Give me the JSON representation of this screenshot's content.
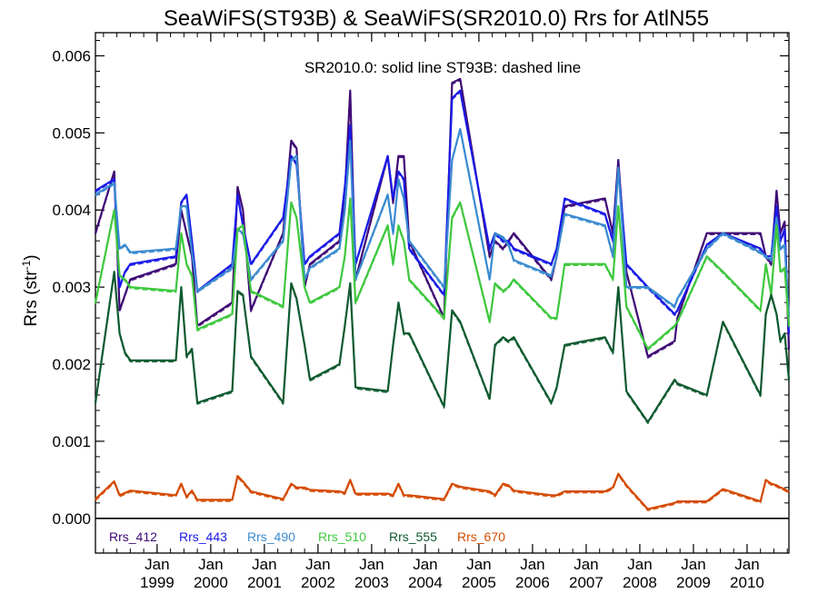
{
  "chart_data": {
    "type": "line",
    "title": "SeaWiFS(ST93B) & SeaWiFS(SR2010.0)  Rrs for AtlN55",
    "annotation": "SR2010.0: solid line   ST93B: dashed line",
    "ylabel": {
      "base": "Rrs (str",
      "sup": "-1",
      "close": ")"
    },
    "ylim": [
      -0.00045,
      0.0063
    ],
    "yticks": [
      "0.000",
      "0.001",
      "0.002",
      "0.003",
      "0.004",
      "0.005",
      "0.006"
    ],
    "xlim": [
      1997.85,
      2010.78
    ],
    "xticks": [
      {
        "x": 1999.0,
        "month": "Jan",
        "year": "1999"
      },
      {
        "x": 2000.0,
        "month": "Jan",
        "year": "2000"
      },
      {
        "x": 2001.0,
        "month": "Jan",
        "year": "2001"
      },
      {
        "x": 2002.0,
        "month": "Jan",
        "year": "2002"
      },
      {
        "x": 2003.0,
        "month": "Jan",
        "year": "2003"
      },
      {
        "x": 2004.0,
        "month": "Jan",
        "year": "2004"
      },
      {
        "x": 2005.0,
        "month": "Jan",
        "year": "2005"
      },
      {
        "x": 2006.0,
        "month": "Jan",
        "year": "2006"
      },
      {
        "x": 2007.0,
        "month": "Jan",
        "year": "2007"
      },
      {
        "x": 2008.0,
        "month": "Jan",
        "year": "2008"
      },
      {
        "x": 2009.0,
        "month": "Jan",
        "year": "2009"
      },
      {
        "x": 2010.0,
        "month": "Jan",
        "year": "2010"
      }
    ],
    "zero_line": true,
    "legend_position": "bottom-left",
    "x": [
      1997.85,
      1998.2,
      1998.3,
      1998.4,
      1998.5,
      1999.35,
      1999.45,
      1999.55,
      1999.65,
      1999.75,
      2000.4,
      2000.5,
      2000.6,
      2000.75,
      2001.35,
      2001.5,
      2001.6,
      2001.75,
      2001.85,
      2002.4,
      2002.5,
      2002.6,
      2002.7,
      2003.3,
      2003.4,
      2003.5,
      2003.6,
      2003.7,
      2004.35,
      2004.5,
      2004.65,
      2005.2,
      2005.3,
      2005.45,
      2005.55,
      2005.65,
      2006.35,
      2006.45,
      2006.6,
      2007.35,
      2007.5,
      2007.6,
      2007.75,
      2008.15,
      2008.65,
      2008.7,
      2009.25,
      2009.55,
      2010.25,
      2010.35,
      2010.45,
      2010.55,
      2010.62,
      2010.7,
      2010.78
    ],
    "series": [
      {
        "name": "Rrs_412",
        "color": "#3f0a75",
        "values": [
          0.0037,
          0.0045,
          0.0027,
          0.0029,
          0.0031,
          0.0033,
          0.004,
          0.0037,
          0.0034,
          0.0025,
          0.0028,
          0.0043,
          0.004,
          0.0027,
          0.0037,
          0.0049,
          0.0048,
          0.003,
          0.0033,
          0.0036,
          0.0042,
          0.00555,
          0.0031,
          0.0047,
          0.0041,
          0.0047,
          0.0047,
          0.0036,
          0.0026,
          0.00565,
          0.0057,
          0.0034,
          0.0036,
          0.0035,
          0.0036,
          0.0037,
          0.0031,
          0.0034,
          0.00405,
          0.00415,
          0.0037,
          0.00465,
          0.0032,
          0.0021,
          0.0023,
          0.0026,
          0.0037,
          0.0037,
          0.0037,
          0.0034,
          0.0033,
          0.00425,
          0.0037,
          0.00385,
          0.0022
        ]
      },
      {
        "name": "Rrs_443",
        "color": "#1a1ae6",
        "values": [
          0.00425,
          0.0044,
          0.003,
          0.0032,
          0.0033,
          0.0034,
          0.0041,
          0.0042,
          0.0036,
          0.00295,
          0.0033,
          0.0042,
          0.0038,
          0.0033,
          0.0039,
          0.0047,
          0.0046,
          0.0033,
          0.0034,
          0.0037,
          0.0043,
          0.0051,
          0.0033,
          0.0047,
          0.00415,
          0.0045,
          0.0044,
          0.0035,
          0.0029,
          0.00545,
          0.00555,
          0.0035,
          0.0037,
          0.0036,
          0.0036,
          0.0035,
          0.0033,
          0.0035,
          0.00415,
          0.00395,
          0.0036,
          0.00455,
          0.0033,
          0.003,
          0.00265,
          0.0027,
          0.00355,
          0.0037,
          0.0035,
          0.0034,
          0.0034,
          0.00405,
          0.0036,
          0.00375,
          0.0024
        ]
      },
      {
        "name": "Rrs_490",
        "color": "#3a8ad0",
        "values": [
          0.0042,
          0.00435,
          0.0035,
          0.00355,
          0.00345,
          0.0035,
          0.00405,
          0.00405,
          0.00345,
          0.00295,
          0.00325,
          0.00375,
          0.0037,
          0.0031,
          0.0036,
          0.00465,
          0.0047,
          0.0031,
          0.00325,
          0.0035,
          0.004,
          0.0049,
          0.0031,
          0.0042,
          0.0037,
          0.0044,
          0.00415,
          0.0036,
          0.003,
          0.00465,
          0.00505,
          0.0031,
          0.0037,
          0.00365,
          0.00355,
          0.00335,
          0.00315,
          0.0034,
          0.00395,
          0.0038,
          0.0034,
          0.00455,
          0.003,
          0.003,
          0.00275,
          0.00285,
          0.0035,
          0.0037,
          0.00345,
          0.0034,
          0.00335,
          0.0039,
          0.0035,
          0.00355,
          0.0026
        ]
      },
      {
        "name": "Rrs_510",
        "color": "#3ec83e",
        "values": [
          0.0028,
          0.004,
          0.00315,
          0.0031,
          0.003,
          0.00295,
          0.0037,
          0.0033,
          0.00315,
          0.00245,
          0.00265,
          0.00375,
          0.0038,
          0.00295,
          0.00275,
          0.0041,
          0.0039,
          0.003,
          0.0028,
          0.003,
          0.0034,
          0.00415,
          0.0028,
          0.0038,
          0.0033,
          0.0038,
          0.0036,
          0.0031,
          0.0026,
          0.0039,
          0.0041,
          0.00255,
          0.00305,
          0.00295,
          0.003,
          0.0031,
          0.0026,
          0.0026,
          0.0033,
          0.0033,
          0.0031,
          0.00405,
          0.00275,
          0.0022,
          0.0025,
          0.00255,
          0.0034,
          0.0032,
          0.0027,
          0.0033,
          0.0029,
          0.0038,
          0.0032,
          0.00325,
          0.0025
        ]
      },
      {
        "name": "Rrs_555",
        "color": "#0e5a30",
        "values": [
          0.0015,
          0.0032,
          0.0024,
          0.00215,
          0.00205,
          0.00205,
          0.003,
          0.0021,
          0.0022,
          0.0015,
          0.00165,
          0.00295,
          0.0029,
          0.0021,
          0.0015,
          0.00305,
          0.00285,
          0.00225,
          0.0018,
          0.002,
          0.0025,
          0.00305,
          0.0017,
          0.00165,
          0.00225,
          0.0028,
          0.0024,
          0.0024,
          0.00145,
          0.0027,
          0.00255,
          0.00155,
          0.00225,
          0.00235,
          0.0023,
          0.00235,
          0.0015,
          0.0017,
          0.00225,
          0.00235,
          0.00215,
          0.003,
          0.00165,
          0.00125,
          0.0018,
          0.00175,
          0.0016,
          0.00255,
          0.0016,
          0.00265,
          0.0029,
          0.00265,
          0.0023,
          0.0024,
          0.0018
        ]
      },
      {
        "name": "Rrs_670",
        "color": "#d44a00",
        "values": [
          0.00025,
          0.00048,
          0.0003,
          0.00033,
          0.00036,
          0.0003,
          0.00045,
          0.00028,
          0.00036,
          0.00024,
          0.00024,
          0.00055,
          0.00048,
          0.00035,
          0.00025,
          0.00045,
          0.0004,
          0.0004,
          0.00037,
          0.00035,
          0.00033,
          0.0005,
          0.00032,
          0.00032,
          0.0003,
          0.00045,
          0.0003,
          0.0003,
          0.00025,
          0.00045,
          0.00041,
          0.00035,
          0.0003,
          0.00045,
          0.00043,
          0.00036,
          0.0003,
          0.0003,
          0.00035,
          0.00035,
          0.0004,
          0.00058,
          0.00043,
          0.00012,
          0.0002,
          0.00022,
          0.00022,
          0.00038,
          0.00022,
          0.0005,
          0.00045,
          0.00043,
          0.0004,
          0.00038,
          0.00034
        ]
      }
    ]
  }
}
